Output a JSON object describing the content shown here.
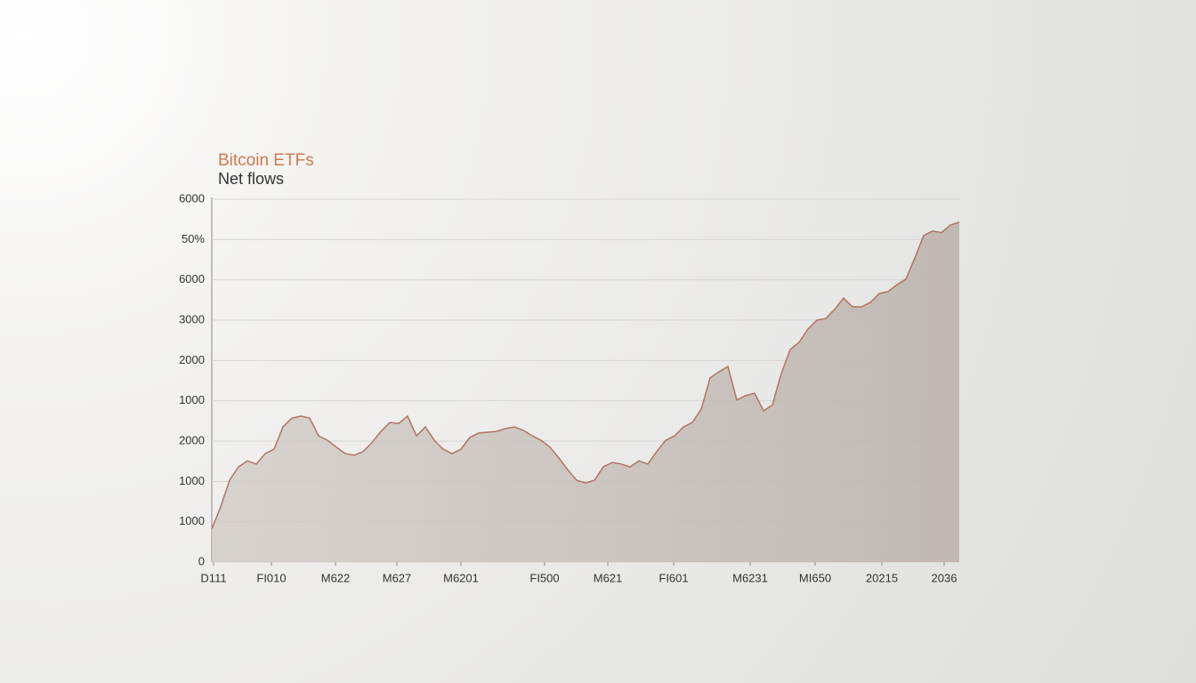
{
  "chart_data": {
    "type": "area",
    "title": "Bitcoin ETFs",
    "subtitle": "Net flows",
    "x": [
      0,
      1,
      2,
      3,
      4,
      5,
      6,
      7,
      8,
      9,
      10,
      11,
      12,
      13,
      14,
      15,
      16,
      17,
      18,
      19,
      20,
      21,
      22,
      23,
      24,
      25,
      26,
      27,
      28,
      29,
      30,
      31,
      32,
      33,
      34,
      35,
      36,
      37,
      38,
      39,
      40,
      41,
      42,
      43,
      44,
      45,
      46,
      47,
      48,
      49,
      50,
      51,
      52,
      53,
      54,
      55,
      56,
      57,
      58,
      59,
      60,
      61,
      62,
      63,
      64,
      65,
      66,
      67,
      68,
      69,
      70,
      71,
      72,
      73,
      74,
      75,
      76,
      77,
      78,
      79,
      80,
      81,
      82,
      83,
      84
    ],
    "series": [
      {
        "name": "Net flows",
        "color": "#b07564",
        "values": [
          0.82,
          1.37,
          2.03,
          2.36,
          2.51,
          2.43,
          2.69,
          2.8,
          3.35,
          3.57,
          3.62,
          3.57,
          3.13,
          3.02,
          2.85,
          2.69,
          2.65,
          2.74,
          2.96,
          3.24,
          3.46,
          3.44,
          3.62,
          3.13,
          3.35,
          3.02,
          2.8,
          2.69,
          2.8,
          3.09,
          3.2,
          3.22,
          3.24,
          3.31,
          3.35,
          3.27,
          3.13,
          3.02,
          2.85,
          2.58,
          2.29,
          2.03,
          1.96,
          2.03,
          2.36,
          2.47,
          2.43,
          2.36,
          2.51,
          2.43,
          2.74,
          3.02,
          3.13,
          3.35,
          3.46,
          3.79,
          4.57,
          4.72,
          4.85,
          4.02,
          4.13,
          4.19,
          3.75,
          3.9,
          4.68,
          5.27,
          5.45,
          5.78,
          6.0,
          6.04,
          6.27,
          6.55,
          6.33,
          6.33,
          6.44,
          6.66,
          6.71,
          6.88,
          7.02,
          7.54,
          8.1,
          8.21,
          8.17,
          8.36,
          8.43
        ]
      }
    ],
    "xlim": [
      0,
      84
    ],
    "xticks": [
      {
        "value": 0.2,
        "label": "D111"
      },
      {
        "value": 6.7,
        "label": "FI010"
      },
      {
        "value": 13.9,
        "label": "M622"
      },
      {
        "value": 20.8,
        "label": "M627"
      },
      {
        "value": 28,
        "label": "M6201"
      },
      {
        "value": 37.4,
        "label": "FI500"
      },
      {
        "value": 44.5,
        "label": "M621"
      },
      {
        "value": 51.9,
        "label": "FI601"
      },
      {
        "value": 60.5,
        "label": "M6231"
      },
      {
        "value": 67.8,
        "label": "MI650"
      },
      {
        "value": 75.3,
        "label": "20215"
      },
      {
        "value": 82.3,
        "label": "2036"
      }
    ],
    "ylim": [
      0,
      9
    ],
    "yticks": [
      0,
      {
        "value": 1,
        "label": "1000"
      },
      {
        "value": 2,
        "label": "1000"
      },
      {
        "value": 3,
        "label": "2000"
      },
      {
        "value": 4,
        "label": "1000"
      },
      {
        "value": 5,
        "label": "2000"
      },
      {
        "value": 6,
        "label": "3000"
      },
      {
        "value": 7,
        "label": "6000"
      },
      {
        "value": 8,
        "label": "50%"
      },
      {
        "value": 9,
        "label": "6000"
      }
    ],
    "grid": true
  }
}
